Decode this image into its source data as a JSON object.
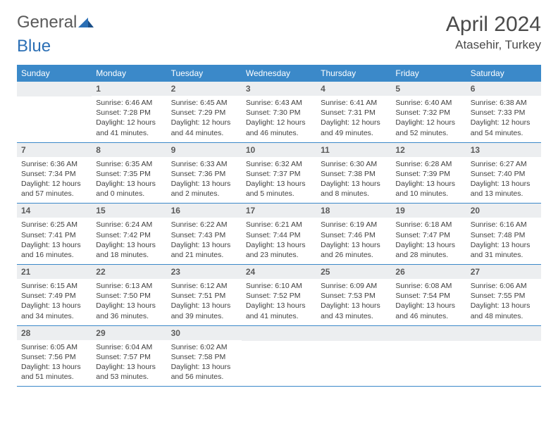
{
  "logo": {
    "text1": "General",
    "text2": "Blue"
  },
  "title": "April 2024",
  "location": "Atasehir, Turkey",
  "colors": {
    "header_bg": "#3b89c9",
    "header_text": "#ffffff",
    "daynum_bg": "#eceef0",
    "daynum_text": "#5a5a5a",
    "week_border": "#3b89c9",
    "body_text": "#404040",
    "logo_gray": "#5a5a5a",
    "logo_blue": "#2b6fb5"
  },
  "weekdays": [
    "Sunday",
    "Monday",
    "Tuesday",
    "Wednesday",
    "Thursday",
    "Friday",
    "Saturday"
  ],
  "weeks": [
    [
      null,
      {
        "n": "1",
        "sr": "6:46 AM",
        "ss": "7:28 PM",
        "dl": "12 hours and 41 minutes."
      },
      {
        "n": "2",
        "sr": "6:45 AM",
        "ss": "7:29 PM",
        "dl": "12 hours and 44 minutes."
      },
      {
        "n": "3",
        "sr": "6:43 AM",
        "ss": "7:30 PM",
        "dl": "12 hours and 46 minutes."
      },
      {
        "n": "4",
        "sr": "6:41 AM",
        "ss": "7:31 PM",
        "dl": "12 hours and 49 minutes."
      },
      {
        "n": "5",
        "sr": "6:40 AM",
        "ss": "7:32 PM",
        "dl": "12 hours and 52 minutes."
      },
      {
        "n": "6",
        "sr": "6:38 AM",
        "ss": "7:33 PM",
        "dl": "12 hours and 54 minutes."
      }
    ],
    [
      {
        "n": "7",
        "sr": "6:36 AM",
        "ss": "7:34 PM",
        "dl": "12 hours and 57 minutes."
      },
      {
        "n": "8",
        "sr": "6:35 AM",
        "ss": "7:35 PM",
        "dl": "13 hours and 0 minutes."
      },
      {
        "n": "9",
        "sr": "6:33 AM",
        "ss": "7:36 PM",
        "dl": "13 hours and 2 minutes."
      },
      {
        "n": "10",
        "sr": "6:32 AM",
        "ss": "7:37 PM",
        "dl": "13 hours and 5 minutes."
      },
      {
        "n": "11",
        "sr": "6:30 AM",
        "ss": "7:38 PM",
        "dl": "13 hours and 8 minutes."
      },
      {
        "n": "12",
        "sr": "6:28 AM",
        "ss": "7:39 PM",
        "dl": "13 hours and 10 minutes."
      },
      {
        "n": "13",
        "sr": "6:27 AM",
        "ss": "7:40 PM",
        "dl": "13 hours and 13 minutes."
      }
    ],
    [
      {
        "n": "14",
        "sr": "6:25 AM",
        "ss": "7:41 PM",
        "dl": "13 hours and 16 minutes."
      },
      {
        "n": "15",
        "sr": "6:24 AM",
        "ss": "7:42 PM",
        "dl": "13 hours and 18 minutes."
      },
      {
        "n": "16",
        "sr": "6:22 AM",
        "ss": "7:43 PM",
        "dl": "13 hours and 21 minutes."
      },
      {
        "n": "17",
        "sr": "6:21 AM",
        "ss": "7:44 PM",
        "dl": "13 hours and 23 minutes."
      },
      {
        "n": "18",
        "sr": "6:19 AM",
        "ss": "7:46 PM",
        "dl": "13 hours and 26 minutes."
      },
      {
        "n": "19",
        "sr": "6:18 AM",
        "ss": "7:47 PM",
        "dl": "13 hours and 28 minutes."
      },
      {
        "n": "20",
        "sr": "6:16 AM",
        "ss": "7:48 PM",
        "dl": "13 hours and 31 minutes."
      }
    ],
    [
      {
        "n": "21",
        "sr": "6:15 AM",
        "ss": "7:49 PM",
        "dl": "13 hours and 34 minutes."
      },
      {
        "n": "22",
        "sr": "6:13 AM",
        "ss": "7:50 PM",
        "dl": "13 hours and 36 minutes."
      },
      {
        "n": "23",
        "sr": "6:12 AM",
        "ss": "7:51 PM",
        "dl": "13 hours and 39 minutes."
      },
      {
        "n": "24",
        "sr": "6:10 AM",
        "ss": "7:52 PM",
        "dl": "13 hours and 41 minutes."
      },
      {
        "n": "25",
        "sr": "6:09 AM",
        "ss": "7:53 PM",
        "dl": "13 hours and 43 minutes."
      },
      {
        "n": "26",
        "sr": "6:08 AM",
        "ss": "7:54 PM",
        "dl": "13 hours and 46 minutes."
      },
      {
        "n": "27",
        "sr": "6:06 AM",
        "ss": "7:55 PM",
        "dl": "13 hours and 48 minutes."
      }
    ],
    [
      {
        "n": "28",
        "sr": "6:05 AM",
        "ss": "7:56 PM",
        "dl": "13 hours and 51 minutes."
      },
      {
        "n": "29",
        "sr": "6:04 AM",
        "ss": "7:57 PM",
        "dl": "13 hours and 53 minutes."
      },
      {
        "n": "30",
        "sr": "6:02 AM",
        "ss": "7:58 PM",
        "dl": "13 hours and 56 minutes."
      },
      null,
      null,
      null,
      null
    ]
  ],
  "labels": {
    "sunrise": "Sunrise:",
    "sunset": "Sunset:",
    "daylight": "Daylight:"
  }
}
